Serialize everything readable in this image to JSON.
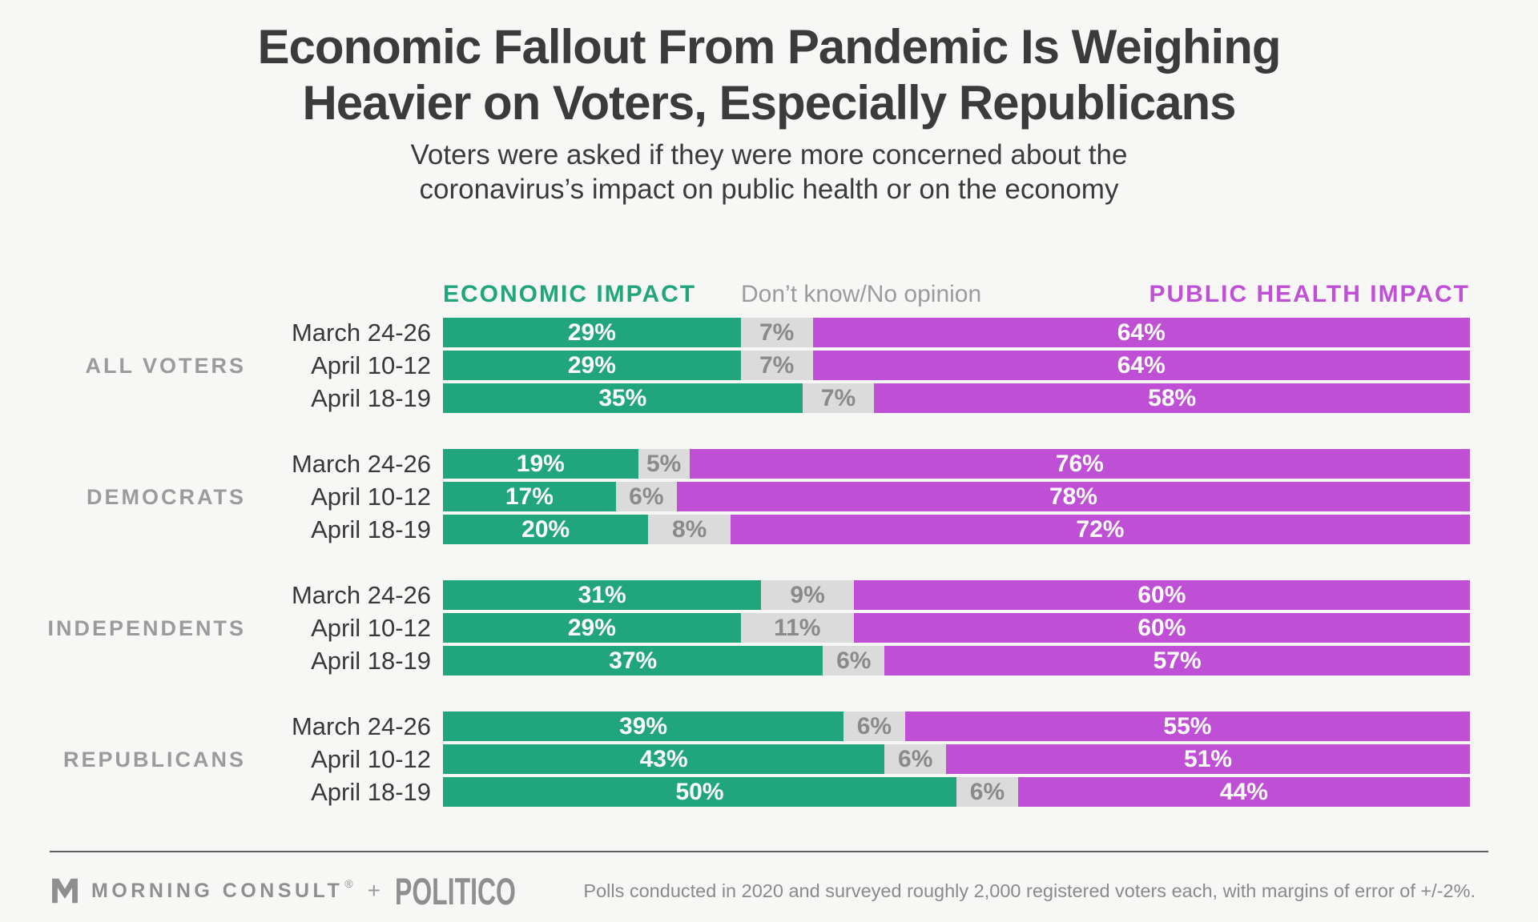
{
  "header": {
    "title_line1": "Economic Fallout From Pandemic Is Weighing",
    "title_line2": "Heavier on Voters, Especially Republicans",
    "subtitle_line1": "Voters were asked if they were more concerned about the",
    "subtitle_line2": "coronavirus’s impact on public health or on the economy"
  },
  "legend": {
    "economic": "ECONOMIC IMPACT",
    "neutral": "Don’t know/No opinion",
    "public_health": "PUBLIC HEALTH IMPACT"
  },
  "colors": {
    "economic": "#21a57c",
    "neutral_segment": "#dbdbdb",
    "neutral_text": "#8a8a8a",
    "public_health": "#bf50d6",
    "group_label": "#9b9b9b",
    "background": "#f7f7f6"
  },
  "chart_data": {
    "type": "bar",
    "stacked": true,
    "orientation": "horizontal",
    "unit": "percent",
    "xlim": [
      0,
      100
    ],
    "title": "Economic Fallout From Pandemic Is Weighing Heavier on Voters, Especially Republicans",
    "series": [
      "Economic impact",
      "Don’t know/No opinion",
      "Public health impact"
    ],
    "legend_position": "top",
    "groups": [
      {
        "label": "ALL VOTERS",
        "rows": [
          {
            "label": "March 24-26",
            "values": [
              29,
              7,
              64
            ]
          },
          {
            "label": "April 10-12",
            "values": [
              29,
              7,
              64
            ]
          },
          {
            "label": "April 18-19",
            "values": [
              35,
              7,
              58
            ]
          }
        ]
      },
      {
        "label": "DEMOCRATS",
        "rows": [
          {
            "label": "March 24-26",
            "values": [
              19,
              5,
              76
            ]
          },
          {
            "label": "April 10-12",
            "values": [
              17,
              6,
              78
            ]
          },
          {
            "label": "April 18-19",
            "values": [
              20,
              8,
              72
            ]
          }
        ]
      },
      {
        "label": "INDEPENDENTS",
        "rows": [
          {
            "label": "March 24-26",
            "values": [
              31,
              9,
              60
            ]
          },
          {
            "label": "April 10-12",
            "values": [
              29,
              11,
              60
            ]
          },
          {
            "label": "April 18-19",
            "values": [
              37,
              6,
              57
            ]
          }
        ]
      },
      {
        "label": "REPUBLICANS",
        "rows": [
          {
            "label": "March 24-26",
            "values": [
              39,
              6,
              55
            ]
          },
          {
            "label": "April 10-12",
            "values": [
              43,
              6,
              51
            ]
          },
          {
            "label": "April 18-19",
            "values": [
              50,
              6,
              44
            ]
          }
        ]
      }
    ]
  },
  "footer": {
    "brand_primary": "MORNING CONSULT",
    "brand_reg_mark": "®",
    "brand_separator": "+",
    "brand_secondary": "POLITICO",
    "note": "Polls conducted in 2020 and surveyed roughly 2,000 registered voters each, with margins of error of +/-2%."
  }
}
